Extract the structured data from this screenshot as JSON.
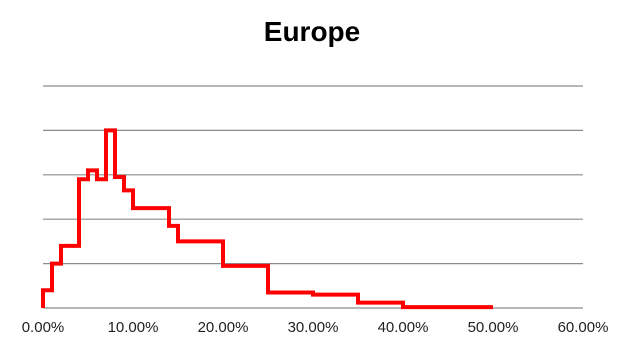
{
  "chart_data": {
    "type": "line",
    "title": "Europe",
    "xlabel": "",
    "ylabel": "",
    "xlim": [
      0,
      0.6
    ],
    "ylim": [
      0,
      5
    ],
    "x_tick_values": [
      0,
      0.1,
      0.2,
      0.3,
      0.4,
      0.5,
      0.6
    ],
    "x_tick_labels": [
      "0.00%",
      "10.00%",
      "20.00%",
      "30.00%",
      "40.00%",
      "50.00%",
      "60.00%"
    ],
    "y_gridlines": [
      1,
      2,
      3,
      4,
      5
    ],
    "y_tick_labels_shown": false,
    "grid": "horizontal",
    "legend": "none",
    "line_style": "step",
    "series_color": "#ff0000",
    "series": [
      {
        "points": [
          [
            0.0,
            0.0
          ],
          [
            0.0,
            0.4
          ],
          [
            0.01,
            0.4
          ],
          [
            0.01,
            1.0
          ],
          [
            0.02,
            1.0
          ],
          [
            0.02,
            1.4
          ],
          [
            0.04,
            1.4
          ],
          [
            0.04,
            2.9
          ],
          [
            0.05,
            2.9
          ],
          [
            0.05,
            3.1
          ],
          [
            0.06,
            3.1
          ],
          [
            0.06,
            2.9
          ],
          [
            0.07,
            2.9
          ],
          [
            0.07,
            4.0
          ],
          [
            0.08,
            4.0
          ],
          [
            0.08,
            2.95
          ],
          [
            0.09,
            2.95
          ],
          [
            0.09,
            2.65
          ],
          [
            0.1,
            2.65
          ],
          [
            0.1,
            2.25
          ],
          [
            0.14,
            2.25
          ],
          [
            0.14,
            1.85
          ],
          [
            0.15,
            1.85
          ],
          [
            0.15,
            1.5
          ],
          [
            0.2,
            1.5
          ],
          [
            0.2,
            0.95
          ],
          [
            0.25,
            0.95
          ],
          [
            0.25,
            0.35
          ],
          [
            0.3,
            0.35
          ],
          [
            0.3,
            0.3
          ],
          [
            0.35,
            0.3
          ],
          [
            0.35,
            0.12
          ],
          [
            0.4,
            0.12
          ],
          [
            0.4,
            0.02
          ],
          [
            0.5,
            0.02
          ]
        ]
      }
    ]
  }
}
